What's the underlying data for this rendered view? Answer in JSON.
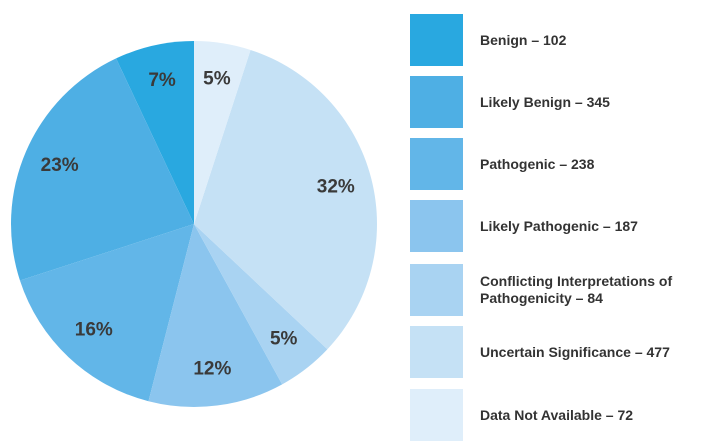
{
  "chart_data": {
    "type": "pie",
    "categories": [
      "Benign – 102",
      "Likely Benign – 345",
      "Pathogenic – 238",
      "Likely Pathogenic – 187",
      "Conflicting Interpretations of Pathogenicity – 84",
      "Uncertain Significance – 477",
      "Data Not Available – 72"
    ],
    "values": [
      7,
      23,
      16,
      12,
      5,
      32,
      5
    ],
    "value_labels": [
      "7%",
      "23%",
      "16%",
      "12%",
      "5%",
      "32%",
      "5%"
    ],
    "colors": [
      "#29a8e0",
      "#4eafe4",
      "#62b6e8",
      "#8bc5ee",
      "#a9d3f2",
      "#c5e1f5",
      "#dfeefa"
    ],
    "legend": "right"
  }
}
